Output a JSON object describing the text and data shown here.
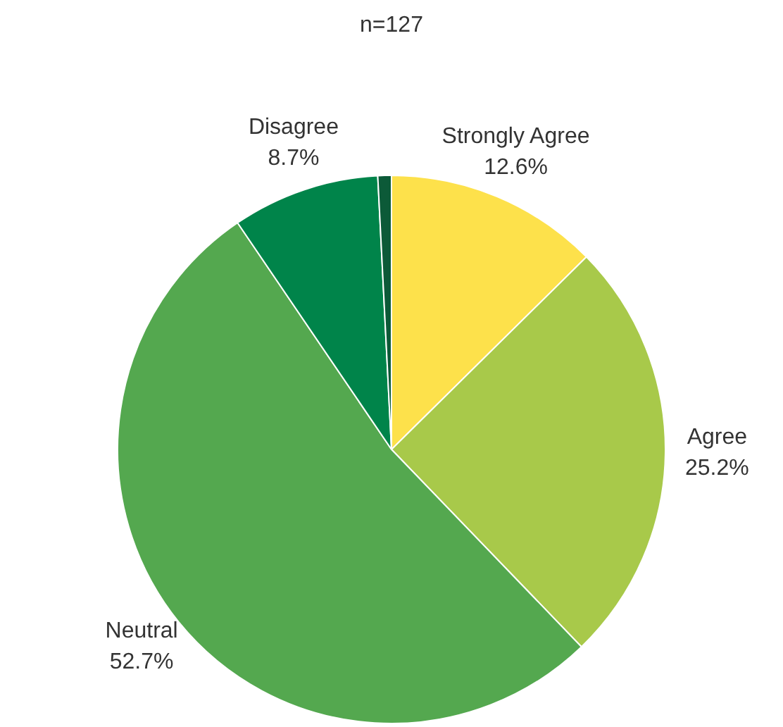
{
  "chart_data": {
    "type": "pie",
    "title": "n=127",
    "categories": [
      "Strongly Agree",
      "Agree",
      "Neutral",
      "Disagree",
      null
    ],
    "values": [
      12.6,
      25.2,
      52.7,
      8.7,
      0.8
    ],
    "value_labels": [
      "12.6%",
      "25.2%",
      "52.7%",
      "8.7%",
      null
    ],
    "colors": [
      "#fde14b",
      "#a8c94a",
      "#54a84f",
      "#00844a",
      "#0c5a38"
    ],
    "legend": false
  }
}
